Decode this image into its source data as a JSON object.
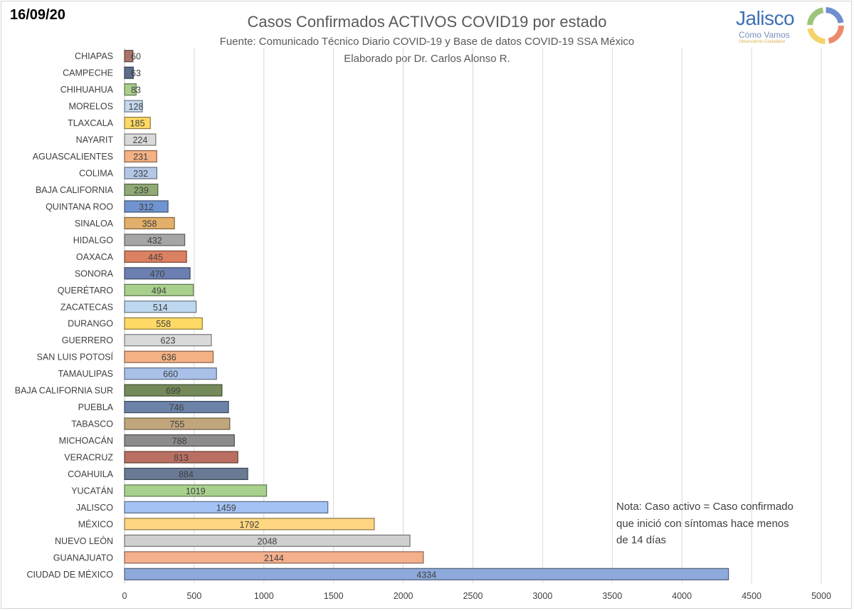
{
  "date": "16/09/20",
  "logo": {
    "name": "Jalisco",
    "sub": "Cómo Vamos",
    "tag": "Observatorio Ciudadano"
  },
  "note": [
    "Nota: Caso activo = Caso confirmado",
    "que inició con síntomas hace menos",
    "de 14 días"
  ],
  "chart_data": {
    "type": "bar",
    "orientation": "horizontal",
    "title": "Casos Confirmados ACTIVOS COVID19 por estado",
    "subtitle": "Fuente: Comunicado Técnico Diario COVID-19 y Base de datos COVID-19 SSA México",
    "author": "Elaborado por Dr. Carlos Alonso R.",
    "xlabel": "",
    "ylabel": "",
    "xlim": [
      0,
      5000
    ],
    "xticks": [
      0,
      500,
      1000,
      1500,
      2000,
      2500,
      3000,
      3500,
      4000,
      4500,
      5000
    ],
    "grid": true,
    "categories": [
      "CHIAPAS",
      "CAMPECHE",
      "CHIHUAHUA",
      "MORELOS",
      "TLAXCALA",
      "NAYARIT",
      "AGUASCALIENTES",
      "COLIMA",
      "BAJA CALIFORNIA",
      "QUINTANA ROO",
      "SINALOA",
      "HIDALGO",
      "OAXACA",
      "SONORA",
      "QUERÉTARO",
      "ZACATECAS",
      "DURANGO",
      "GUERRERO",
      "SAN LUIS POTOSÍ",
      "TAMAULIPAS",
      "BAJA CALIFORNIA SUR",
      "PUEBLA",
      "TABASCO",
      "MICHOACÁN",
      "VERACRUZ",
      "COAHUILA",
      "YUCATÁN",
      "JALISCO",
      "MÉXICO",
      "NUEVO LEÓN",
      "GUANAJUATO",
      "CIUDAD DE MÉXICO"
    ],
    "values": [
      60,
      63,
      83,
      128,
      185,
      224,
      231,
      232,
      239,
      312,
      358,
      432,
      445,
      470,
      494,
      514,
      558,
      623,
      636,
      660,
      699,
      746,
      755,
      788,
      813,
      884,
      1019,
      1459,
      1792,
      2048,
      2144,
      4334
    ],
    "colors": [
      "#a9746a",
      "#5c6e8c",
      "#a8d08d",
      "#c5d8ef",
      "#ffd966",
      "#d9d9d9",
      "#f4b183",
      "#b4c7e7",
      "#8faa74",
      "#6f94cf",
      "#e2b06a",
      "#a6a6a6",
      "#dc8062",
      "#6b80b0",
      "#a8d08d",
      "#bdd7ee",
      "#ffd966",
      "#d9d9d9",
      "#f4b183",
      "#a9c0e9",
      "#748a5a",
      "#6c82a8",
      "#c1a67c",
      "#8c8c8c",
      "#b97062",
      "#6a7a94",
      "#a9d18e",
      "#a4c2f4",
      "#ffd780",
      "#cfcfcf",
      "#f4b08c",
      "#8ea9db"
    ]
  }
}
